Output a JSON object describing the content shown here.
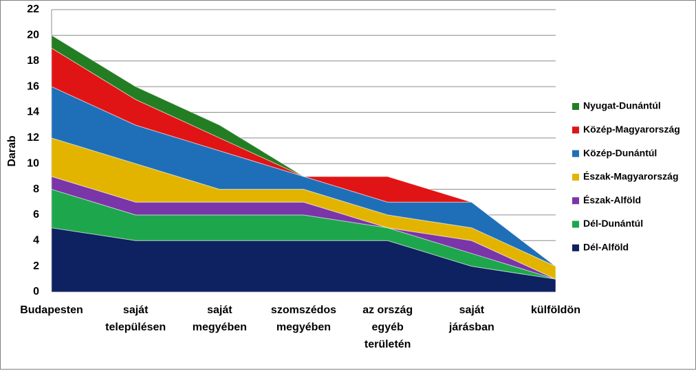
{
  "chart_data": {
    "type": "stacked_area",
    "ylabel": "Darab",
    "categories": [
      [
        "Budapesten"
      ],
      [
        "saját",
        "településen"
      ],
      [
        "saját",
        "megyében"
      ],
      [
        "szomszédos",
        "megyében"
      ],
      [
        "az ország",
        "egyéb",
        "területén"
      ],
      [
        "saját",
        "járásban"
      ],
      [
        "külföldön"
      ]
    ],
    "series": [
      {
        "name": "Dél-Alföld",
        "color": "#0e2160",
        "values": [
          5,
          4,
          4,
          4,
          4,
          2,
          1
        ]
      },
      {
        "name": "Dél-Dunántúl",
        "color": "#1ea64c",
        "values": [
          3,
          2,
          2,
          2,
          1,
          1,
          0
        ]
      },
      {
        "name": "Észak-Alföld",
        "color": "#7a35a8",
        "values": [
          1,
          1,
          1,
          1,
          0,
          1,
          0
        ]
      },
      {
        "name": "Észak-Magyarország",
        "color": "#e2b400",
        "values": [
          3,
          3,
          1,
          1,
          1,
          1,
          1
        ]
      },
      {
        "name": "Közép-Dunántúl",
        "color": "#1f6fb8",
        "values": [
          4,
          3,
          3,
          1,
          1,
          2,
          0
        ]
      },
      {
        "name": "Közép-Magyarország",
        "color": "#e01414",
        "values": [
          3,
          2,
          1,
          0,
          2,
          0,
          0
        ]
      },
      {
        "name": "Nyugat-Dunántúl",
        "color": "#237d23",
        "values": [
          1,
          1,
          1,
          0,
          0,
          0,
          0
        ]
      }
    ],
    "ylim": [
      0,
      22
    ],
    "yticks": [
      0,
      2,
      4,
      6,
      8,
      10,
      12,
      14,
      16,
      18,
      20,
      22
    ],
    "grid": true,
    "legend": "right"
  }
}
